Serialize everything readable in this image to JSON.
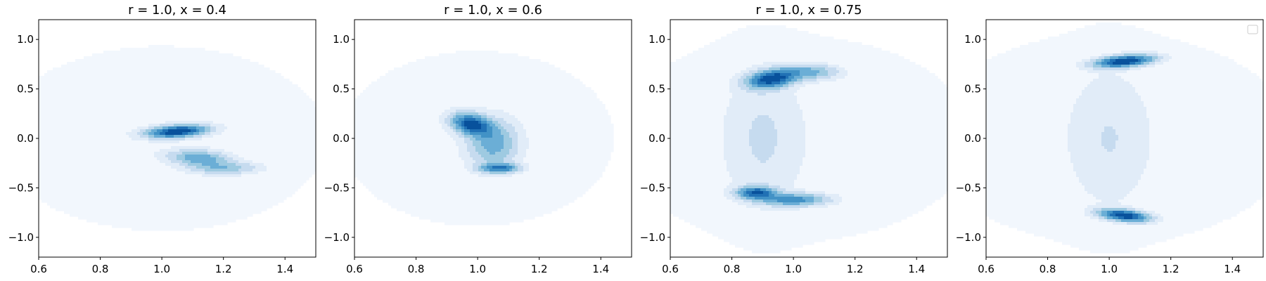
{
  "chart_data": [
    {
      "type": "contour",
      "title": "r = 1.0, x = 0.4",
      "xlim": [
        0.6,
        1.5
      ],
      "ylim": [
        -1.2,
        1.2
      ],
      "xticks": [
        "0.6",
        "0.8",
        "1.0",
        "1.2",
        "1.4"
      ],
      "yticks": [
        "−1.0",
        "−0.5",
        "0.0",
        "0.5",
        "1.0"
      ],
      "xtick_values": [
        0.6,
        0.8,
        1.0,
        1.2,
        1.4
      ],
      "ytick_values": [
        -1.0,
        -0.5,
        0.0,
        0.5,
        1.0
      ],
      "colormap": "Blues",
      "density_peaks": [
        {
          "x": 1.05,
          "y": 0.07,
          "sx": 0.06,
          "sy": 0.04,
          "rho": 0.3,
          "w": 1.0
        },
        {
          "x": 1.12,
          "y": -0.2,
          "sx": 0.06,
          "sy": 0.05,
          "rho": -0.2,
          "w": 0.45
        },
        {
          "x": 1.2,
          "y": -0.3,
          "sx": 0.07,
          "sy": 0.04,
          "rho": 0.0,
          "w": 0.3
        },
        {
          "x": 1.0,
          "y": 0.0,
          "sx": 0.4,
          "sy": 0.7,
          "rho": 0.0,
          "w": 0.05
        }
      ]
    },
    {
      "type": "contour",
      "title": "r = 1.0, x = 0.6",
      "xlim": [
        0.6,
        1.5
      ],
      "ylim": [
        -1.2,
        1.2
      ],
      "xticks": [
        "0.6",
        "0.8",
        "1.0",
        "1.2",
        "1.4"
      ],
      "yticks": [
        "−1.0",
        "−0.5",
        "0.0",
        "0.5",
        "1.0"
      ],
      "xtick_values": [
        0.6,
        0.8,
        1.0,
        1.2,
        1.4
      ],
      "ytick_values": [
        -1.0,
        -0.5,
        0.0,
        0.5,
        1.0
      ],
      "colormap": "Blues",
      "density_peaks": [
        {
          "x": 0.98,
          "y": 0.14,
          "sx": 0.04,
          "sy": 0.07,
          "rho": -0.3,
          "w": 1.0
        },
        {
          "x": 1.05,
          "y": -0.05,
          "sx": 0.05,
          "sy": 0.15,
          "rho": 0.0,
          "w": 0.45
        },
        {
          "x": 1.07,
          "y": -0.3,
          "sx": 0.04,
          "sy": 0.03,
          "rho": 0.0,
          "w": 0.75
        },
        {
          "x": 1.0,
          "y": 0.0,
          "sx": 0.35,
          "sy": 0.7,
          "rho": 0.0,
          "w": 0.05
        }
      ]
    },
    {
      "type": "contour",
      "title": "r = 1.0, x = 0.75",
      "xlim": [
        0.6,
        1.5
      ],
      "ylim": [
        -1.2,
        1.2
      ],
      "xticks": [
        "0.6",
        "0.8",
        "1.0",
        "1.2",
        "1.4"
      ],
      "yticks": [
        "−1.0",
        "−0.5",
        "0.0",
        "0.5",
        "1.0"
      ],
      "xtick_values": [
        0.6,
        0.8,
        1.0,
        1.2,
        1.4
      ],
      "ytick_values": [
        -1.0,
        -0.5,
        0.0,
        0.5,
        1.0
      ],
      "colormap": "Blues",
      "density_peaks": [
        {
          "x": 0.93,
          "y": 0.6,
          "sx": 0.05,
          "sy": 0.06,
          "rho": 0.3,
          "w": 1.0
        },
        {
          "x": 1.05,
          "y": 0.67,
          "sx": 0.06,
          "sy": 0.05,
          "rho": 0.0,
          "w": 0.4
        },
        {
          "x": 0.88,
          "y": -0.55,
          "sx": 0.04,
          "sy": 0.04,
          "rho": 0.0,
          "w": 0.85
        },
        {
          "x": 1.0,
          "y": -0.62,
          "sx": 0.07,
          "sy": 0.04,
          "rho": 0.0,
          "w": 0.6
        },
        {
          "x": 0.9,
          "y": 0.0,
          "sx": 0.08,
          "sy": 0.45,
          "rho": 0.0,
          "w": 0.12
        },
        {
          "x": 1.0,
          "y": 0.0,
          "sx": 0.45,
          "sy": 0.8,
          "rho": 0.0,
          "w": 0.05
        }
      ]
    },
    {
      "type": "contour",
      "title": "",
      "xlim": [
        0.6,
        1.5
      ],
      "ylim": [
        -1.2,
        1.2
      ],
      "xticks": [
        "0.6",
        "0.8",
        "1.0",
        "1.2",
        "1.4"
      ],
      "yticks": [
        "−1.0",
        "−0.5",
        "0.0",
        "0.5",
        "1.0"
      ],
      "xtick_values": [
        0.6,
        0.8,
        1.0,
        1.2,
        1.4
      ],
      "ytick_values": [
        -1.0,
        -0.5,
        0.0,
        0.5,
        1.0
      ],
      "colormap": "Blues",
      "legend": "top-right",
      "density_peaks": [
        {
          "x": 1.05,
          "y": 0.78,
          "sx": 0.06,
          "sy": 0.04,
          "rho": 0.4,
          "w": 1.0
        },
        {
          "x": 1.05,
          "y": -0.78,
          "sx": 0.05,
          "sy": 0.04,
          "rho": -0.4,
          "w": 1.0
        },
        {
          "x": 1.0,
          "y": 0.0,
          "sx": 0.08,
          "sy": 0.45,
          "rho": 0.0,
          "w": 0.1
        },
        {
          "x": 1.0,
          "y": 0.0,
          "sx": 0.45,
          "sy": 0.8,
          "rho": 0.0,
          "w": 0.05
        }
      ]
    }
  ],
  "colors": {
    "levels": [
      "#f2f7fd",
      "#e1ecf8",
      "#c6dbef",
      "#9ecae1",
      "#6baed6",
      "#4292c6",
      "#2171b5",
      "#08519c"
    ],
    "axis": "#000000",
    "background": "#ffffff"
  }
}
